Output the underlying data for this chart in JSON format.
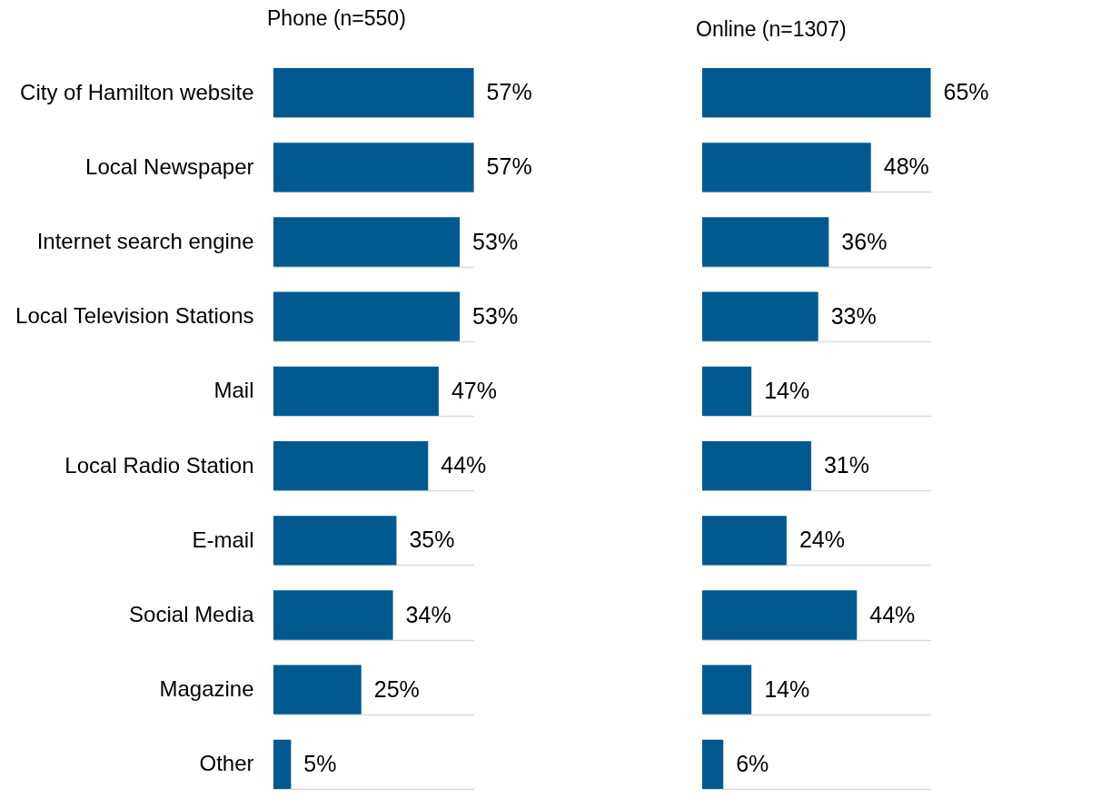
{
  "chart_data": [
    {
      "type": "bar",
      "orientation": "horizontal",
      "title": "Phone (n=550)",
      "categories": [
        "City of Hamilton website",
        "Local Newspaper",
        "Internet search engine",
        "Local Television Stations",
        "Mail",
        "Local Radio Station",
        "E-mail",
        "Social Media",
        "Magazine",
        "Other"
      ],
      "values": [
        57,
        57,
        53,
        53,
        47,
        44,
        35,
        34,
        25,
        5
      ],
      "value_labels": [
        "57%",
        "57%",
        "53%",
        "53%",
        "47%",
        "44%",
        "35%",
        "34%",
        "25%",
        "5%"
      ],
      "color": "#00598f",
      "grid": "y",
      "tick_labels": "y"
    },
    {
      "type": "bar",
      "orientation": "horizontal",
      "title": "Online (n=1307)",
      "categories": [
        null,
        null,
        null,
        null,
        null,
        null,
        null,
        null,
        null,
        null
      ],
      "values": [
        65,
        48,
        36,
        33,
        14,
        31,
        24,
        44,
        14,
        6
      ],
      "value_labels": [
        "65%",
        "48%",
        "36%",
        "33%",
        "14%",
        "31%",
        "24%",
        "44%",
        "14%",
        "6%"
      ],
      "color": "#00598f",
      "grid": "y",
      "tick_labels": false
    }
  ]
}
